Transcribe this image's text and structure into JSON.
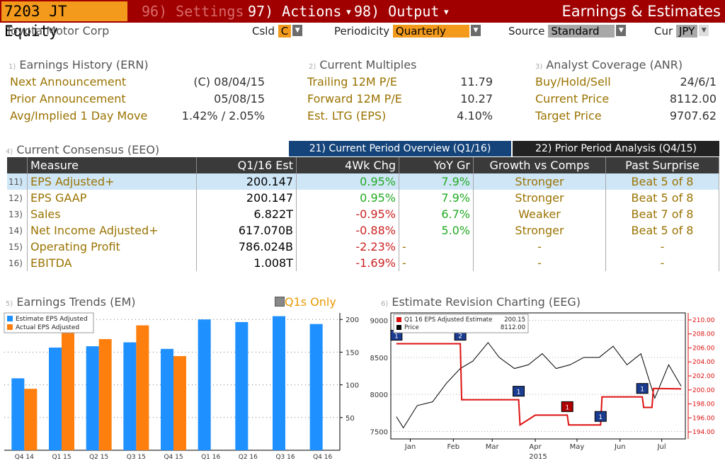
{
  "header": {
    "ticker": "7203 JT Equity",
    "menu_settings": "96) Settings",
    "menu_actions": "97) Actions",
    "menu_output": "98) Output",
    "screen_title": "Earnings & Estimates",
    "company": "Toyota Motor Corp",
    "csld_label": "Csld",
    "csld_value": "C",
    "periodicity_label": "Periodicity",
    "periodicity_value": "Quarterly",
    "source_label": "Source",
    "source_value": "Standard",
    "cur_label": "Cur",
    "cur_value": "JPY"
  },
  "earnings_history": {
    "num": "1)",
    "title": "Earnings History (ERN)",
    "rows": [
      {
        "label": "Next Announcement",
        "value": "(C)  08/04/15"
      },
      {
        "label": "Prior Announcement",
        "value": "05/08/15"
      },
      {
        "label": "Avg/Implied 1 Day Move",
        "value": "1.42% / 2.05%"
      }
    ]
  },
  "current_multiples": {
    "num": "2)",
    "title": "Current Multiples",
    "rows": [
      {
        "label": "Trailing 12M P/E",
        "value": "11.79"
      },
      {
        "label": "Forward 12M P/E",
        "value": "10.27"
      },
      {
        "label": "Est. LTG (EPS)",
        "value": "4.10%"
      }
    ]
  },
  "analyst_coverage": {
    "num": "3)",
    "title": "Analyst Coverage (ANR)",
    "rows": [
      {
        "label": "Buy/Hold/Sell",
        "value": "24/6/1"
      },
      {
        "label": "Current Price",
        "value": "8112.00"
      },
      {
        "label": "Target Price",
        "value": "9707.62"
      }
    ]
  },
  "consensus": {
    "num": "4)",
    "title": "Current Consensus (EEO)",
    "tab_current": "21) Current Period Overview (Q1/16)",
    "tab_prior": "22) Prior Period Analysis (Q4/15)",
    "columns": [
      "Measure",
      "Q1/16 Est",
      "4Wk Chg",
      "YoY Gr",
      "Growth vs Comps",
      "Past Surprise"
    ],
    "rows": [
      {
        "n": "11)",
        "measure": "EPS Adjusted+",
        "est": "200.147",
        "chg": "0.95%",
        "chg_sign": "pos",
        "yoy": "7.9%",
        "yoy_sign": "pos",
        "comps": "Stronger",
        "surprise": "Beat 5 of 8"
      },
      {
        "n": "12)",
        "measure": "EPS GAAP",
        "est": "200.147",
        "chg": "0.95%",
        "chg_sign": "pos",
        "yoy": "7.9%",
        "yoy_sign": "pos",
        "comps": "Stronger",
        "surprise": "Beat 5 of 8"
      },
      {
        "n": "13)",
        "measure": "Sales",
        "est": "6.822T",
        "chg": "-0.95%",
        "chg_sign": "neg",
        "yoy": "6.7%",
        "yoy_sign": "pos",
        "comps": "Weaker",
        "surprise": "Beat 7 of 8"
      },
      {
        "n": "14)",
        "measure": "Net Income Adjusted+",
        "est": "617.070B",
        "chg": "-0.88%",
        "chg_sign": "neg",
        "yoy": "5.0%",
        "yoy_sign": "pos",
        "comps": "Stronger",
        "surprise": "Beat 5 of 8"
      },
      {
        "n": "15)",
        "measure": "Operating Profit",
        "est": "786.024B",
        "chg": "-2.23%",
        "chg_sign": "neg",
        "yoy": "-",
        "yoy_sign": "none",
        "comps": "-",
        "surprise": "-"
      },
      {
        "n": "16)",
        "measure": "EBITDA",
        "est": "1.008T",
        "chg": "-1.69%",
        "chg_sign": "neg",
        "yoy": "-",
        "yoy_sign": "none",
        "comps": "-",
        "surprise": "-"
      }
    ]
  },
  "earnings_trends": {
    "num": "5)",
    "title": "Earnings Trends (EM)",
    "q1s_only": "Q1s Only"
  },
  "revision_chart": {
    "num": "6)",
    "title": "Estimate Revision Charting (EEG)"
  },
  "colors": {
    "bloomberg_red": "#a00000",
    "orange": "#f39a1c",
    "estimate_blue": "#1e90ff",
    "actual_orange": "#ff7f0e",
    "positive": "#22aa22",
    "negative": "#cc2222",
    "label_gold": "#9a7300"
  },
  "chart_data": [
    {
      "type": "bar",
      "categories": [
        "Q4 14",
        "Q1 15",
        "Q2 15",
        "Q3 15",
        "Q4 15",
        "Q1 16",
        "Q2 16",
        "Q3 16",
        "Q4 16"
      ],
      "series": [
        {
          "name": "Estimate EPS Adjusted",
          "values": [
            110,
            157,
            159,
            165,
            155,
            200,
            196,
            205,
            193
          ],
          "color": "#1e90ff"
        },
        {
          "name": "Actual EPS Adjusted",
          "values": [
            94,
            187,
            170,
            191,
            144,
            null,
            null,
            null,
            null
          ],
          "color": "#ff7f0e"
        }
      ],
      "ylim": [
        0,
        210
      ],
      "yticks": [
        50,
        100,
        150,
        200
      ],
      "grid": true,
      "legend": "top-left"
    },
    {
      "type": "line",
      "xlabel": "2015",
      "x_ticks": [
        "Jan",
        "Feb",
        "Mar",
        "Apr",
        "May",
        "Jun",
        "Jul"
      ],
      "series": [
        {
          "name": "Q1 16 EPS Adjusted Estimate",
          "legend_value": "200.15",
          "color": "#dd1111",
          "axis": "right",
          "x": [
            "2015-01-05",
            "2015-02-20",
            "2015-02-21",
            "2015-04-03",
            "2015-04-04",
            "2015-04-15",
            "2015-05-08",
            "2015-05-09",
            "2015-06-01",
            "2015-06-02",
            "2015-07-01",
            "2015-07-02",
            "2015-07-08",
            "2015-07-09",
            "2015-07-29"
          ],
          "y": [
            206.6,
            206.6,
            198.6,
            198.6,
            195.0,
            196.4,
            196.4,
            195.0,
            195.0,
            199.0,
            199.0,
            197.5,
            197.5,
            200.2,
            200.15
          ]
        },
        {
          "name": "Price",
          "legend_value": "8112.00",
          "color": "#000000",
          "axis": "left",
          "x": [
            "2015-01-05",
            "2015-01-10",
            "2015-01-20",
            "2015-01-31",
            "2015-02-10",
            "2015-02-20",
            "2015-03-01",
            "2015-03-12",
            "2015-03-20",
            "2015-03-31",
            "2015-04-10",
            "2015-04-20",
            "2015-04-30",
            "2015-05-10",
            "2015-05-20",
            "2015-05-31",
            "2015-06-10",
            "2015-06-20",
            "2015-06-30",
            "2015-07-10",
            "2015-07-20",
            "2015-07-29"
          ],
          "y": [
            7700,
            7550,
            7850,
            7900,
            8150,
            8350,
            8450,
            8700,
            8500,
            8350,
            8400,
            8550,
            8350,
            8400,
            8500,
            8500,
            8650,
            8400,
            8550,
            7950,
            8400,
            8112
          ]
        }
      ],
      "ylim_left": [
        7400,
        9100
      ],
      "yticks_left": [
        7500,
        8000,
        8500,
        9000
      ],
      "ylim_right": [
        193,
        211
      ],
      "yticks_right": [
        "194.00",
        "196.00",
        "198.00",
        "200.00",
        "202.00",
        "204.00",
        "206.00",
        "208.00",
        "210.00"
      ],
      "revision_markers": [
        {
          "date": "2015-01-05",
          "label": "1",
          "color": "#1a3b8f"
        },
        {
          "date": "2015-02-20",
          "label": "2",
          "color": "#1a3b8f"
        },
        {
          "date": "2015-04-03",
          "label": "1",
          "color": "#1a3b8f"
        },
        {
          "date": "2015-05-08",
          "label": "1",
          "color": "#b00000"
        },
        {
          "date": "2015-06-01",
          "label": "1",
          "color": "#1a3b8f"
        },
        {
          "date": "2015-07-01",
          "label": "1",
          "color": "#1a3b8f"
        }
      ],
      "grid": true,
      "legend": "top-left"
    }
  ]
}
